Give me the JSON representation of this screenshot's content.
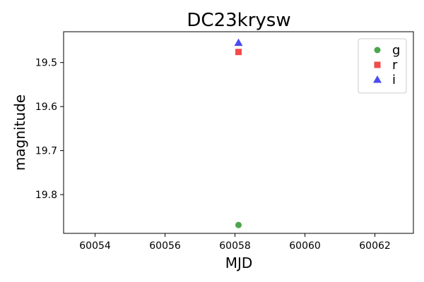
{
  "chart_data": {
    "type": "scatter",
    "title": "DC23krysw",
    "xlabel": "MJD",
    "ylabel": "magnitude",
    "xlim": [
      60053.1,
      60063.1
    ],
    "ylim": [
      19.888,
      19.43
    ],
    "y_inverted": true,
    "x_ticks": [
      60054,
      60056,
      60058,
      60060,
      60062
    ],
    "y_ticks": [
      19.5,
      19.6,
      19.7,
      19.8
    ],
    "grid": false,
    "legend_position": "top-right",
    "series": [
      {
        "name": "g",
        "marker": "circle",
        "color": "#4ca64c",
        "points": [
          {
            "x": 60058.1,
            "y": 19.869
          }
        ]
      },
      {
        "name": "r",
        "marker": "square",
        "color": "#f24b4b",
        "points": [
          {
            "x": 60058.1,
            "y": 19.476
          }
        ]
      },
      {
        "name": "i",
        "marker": "triangle",
        "color": "#4b4bf2",
        "points": [
          {
            "x": 60058.1,
            "y": 19.455
          }
        ]
      }
    ]
  }
}
